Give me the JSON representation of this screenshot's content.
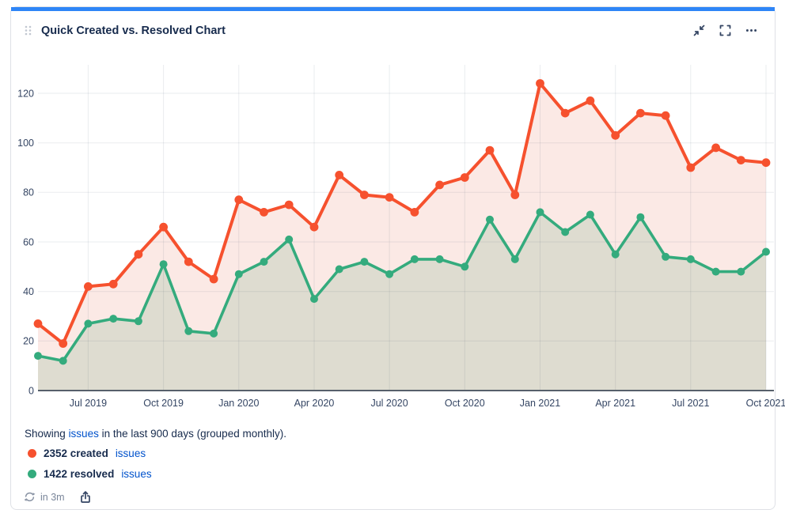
{
  "card": {
    "title": "Quick Created vs. Resolved Chart",
    "accent_color": "#2E85F7",
    "controls": {
      "collapse_label": "collapse",
      "fullscreen_label": "fullscreen",
      "more_label": "more options"
    }
  },
  "chart_data": {
    "type": "line",
    "title": "Quick Created vs. Resolved Chart",
    "x": [
      "May 2019",
      "Jun 2019",
      "Jul 2019",
      "Aug 2019",
      "Sep 2019",
      "Oct 2019",
      "Nov 2019",
      "Dec 2019",
      "Jan 2020",
      "Feb 2020",
      "Mar 2020",
      "Apr 2020",
      "May 2020",
      "Jun 2020",
      "Jul 2020",
      "Aug 2020",
      "Sep 2020",
      "Oct 2020",
      "Nov 2020",
      "Dec 2020",
      "Jan 2021",
      "Feb 2021",
      "Mar 2021",
      "Apr 2021",
      "May 2021",
      "Jun 2021",
      "Jul 2021",
      "Aug 2021",
      "Sep 2021",
      "Oct 2021"
    ],
    "x_tick_indices": [
      2,
      5,
      8,
      11,
      14,
      17,
      20,
      23,
      26,
      29
    ],
    "x_tick_labels": [
      "Jul 2019",
      "Oct 2019",
      "Jan 2020",
      "Apr 2020",
      "Jul 2020",
      "Oct 2020",
      "Jan 2021",
      "Apr 2021",
      "Jul 2021",
      "Oct 2021"
    ],
    "y_ticks": [
      0,
      20,
      40,
      60,
      80,
      100,
      120
    ],
    "ylim": [
      0,
      130
    ],
    "grid": true,
    "legend_position": "bottom",
    "series": [
      {
        "name": "created issues",
        "total": 2352,
        "color": "#F6512E",
        "fill": "#FBE9E5",
        "values": [
          27,
          19,
          42,
          43,
          55,
          66,
          52,
          45,
          77,
          72,
          75,
          66,
          87,
          79,
          78,
          72,
          83,
          86,
          97,
          79,
          124,
          112,
          117,
          103,
          112,
          111,
          90,
          98,
          93,
          92
        ]
      },
      {
        "name": "resolved issues",
        "total": 1422,
        "color": "#34AB7D",
        "fill": "#DEDCD0",
        "values": [
          14,
          12,
          27,
          29,
          28,
          51,
          24,
          23,
          47,
          52,
          61,
          37,
          49,
          52,
          47,
          53,
          53,
          50,
          69,
          53,
          72,
          64,
          71,
          55,
          70,
          54,
          53,
          48,
          48,
          56
        ]
      }
    ]
  },
  "footer": {
    "caption_prefix": "Showing",
    "caption_link": "issues",
    "caption_suffix": "in the last 900 days (grouped monthly).",
    "legend": [
      {
        "label": "2352 created",
        "link": "issues"
      },
      {
        "label": "1422 resolved",
        "link": "issues"
      }
    ],
    "refresh_label": "in 3m"
  }
}
